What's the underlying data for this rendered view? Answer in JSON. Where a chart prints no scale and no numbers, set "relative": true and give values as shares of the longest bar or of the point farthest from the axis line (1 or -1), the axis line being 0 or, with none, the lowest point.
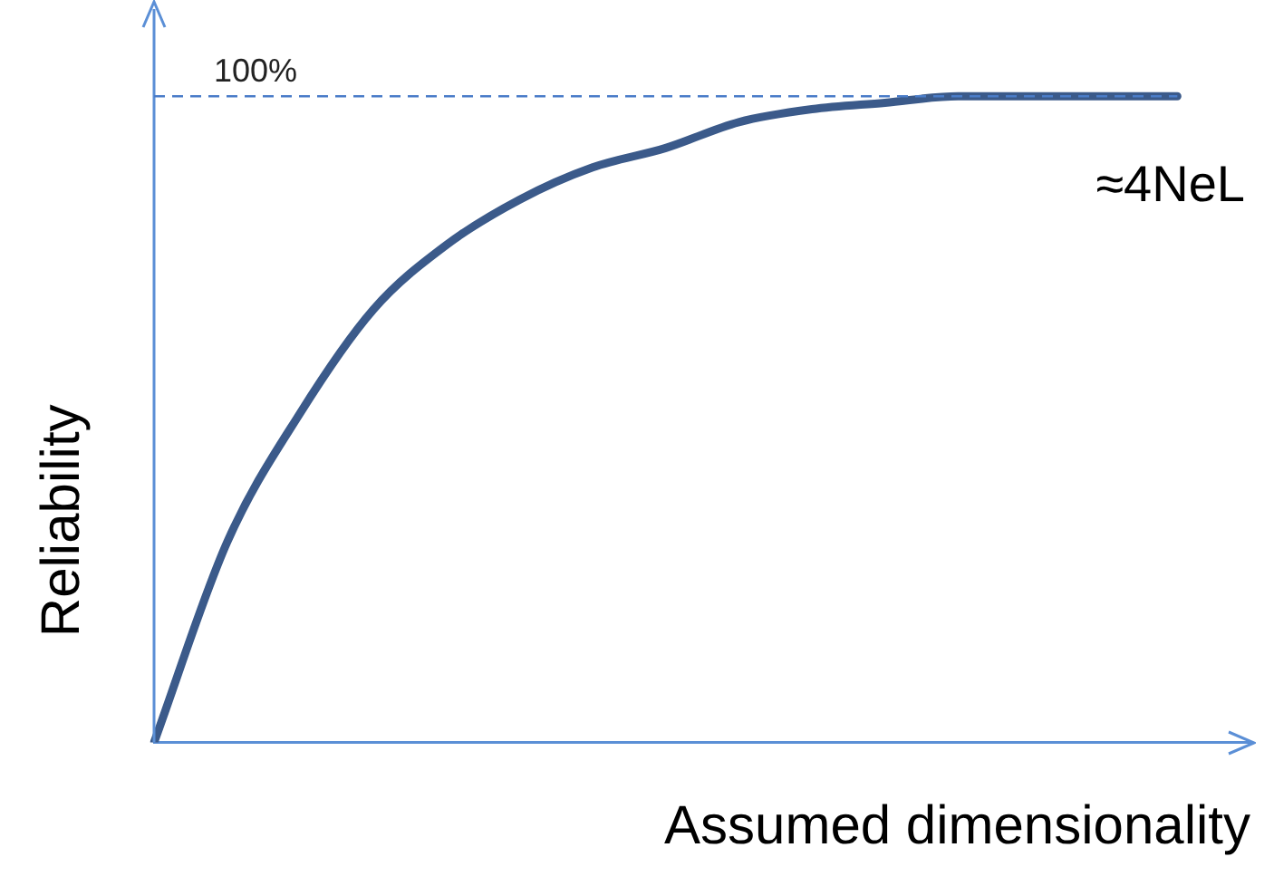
{
  "chart_data": {
    "type": "line",
    "relative": true,
    "xlabel": "Assumed dimensionality",
    "ylabel": "Reliability",
    "categories": [
      null,
      null,
      null,
      null,
      null,
      null,
      null,
      null,
      null,
      null,
      null,
      null,
      null,
      null,
      null,
      null
    ],
    "series": [
      {
        "color": "#3b5a8a",
        "values": [
          0,
          0.31,
          0.51,
          0.67,
          0.77,
          0.84,
          0.89,
          0.92,
          0.96,
          0.98,
          0.99,
          1,
          1,
          1,
          1,
          null
        ]
      }
    ],
    "ref_lines": [
      {
        "axis": "y",
        "value": 1,
        "label": "100%",
        "color": "#4a7cc8",
        "line_style": "dashed"
      }
    ],
    "annotations": [
      "≈4NeL"
    ],
    "grid": false,
    "legend": false,
    "marker": "none",
    "line_style": "solid"
  }
}
